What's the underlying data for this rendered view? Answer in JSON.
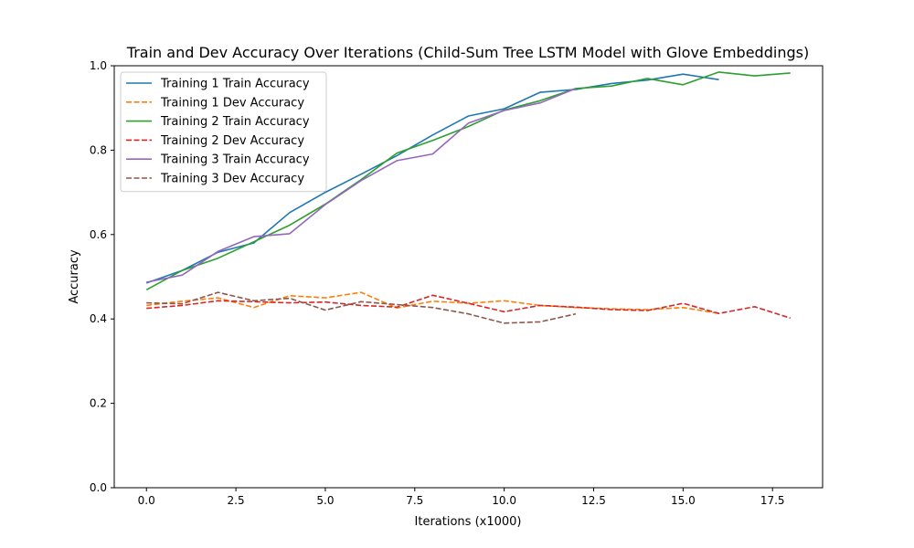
{
  "chart_data": {
    "type": "line",
    "title": "Train and Dev Accuracy Over Iterations (Child-Sum Tree LSTM Model with Glove Embeddings)",
    "xlabel": "Iterations (x1000)",
    "ylabel": "Accuracy",
    "xlim": [
      -0.9,
      18.9
    ],
    "ylim": [
      0.0,
      1.0
    ],
    "xticks": [
      "0.0",
      "2.5",
      "5.0",
      "7.5",
      "10.0",
      "12.5",
      "15.0",
      "17.5"
    ],
    "yticks": [
      "0.0",
      "0.2",
      "0.4",
      "0.6",
      "0.8",
      "1.0"
    ],
    "grid": false,
    "legend_position": "top-left",
    "series": [
      {
        "name": "Training 1 Train Accuracy",
        "color": "#1f77b4",
        "style": "solid",
        "x": [
          0,
          1,
          2,
          3,
          4,
          5,
          6,
          7,
          8,
          9,
          10,
          11,
          12,
          13,
          14,
          15,
          16
        ],
        "y": [
          0.485,
          0.515,
          0.558,
          0.58,
          0.652,
          0.7,
          0.743,
          0.787,
          0.836,
          0.881,
          0.898,
          0.937,
          0.944,
          0.958,
          0.966,
          0.98,
          0.967
        ]
      },
      {
        "name": "Training 1 Dev Accuracy",
        "color": "#ff7f0e",
        "style": "dashed",
        "x": [
          0,
          1,
          2,
          3,
          4,
          5,
          6,
          7,
          8,
          9,
          10,
          11,
          12,
          13,
          14,
          15,
          16
        ],
        "y": [
          0.432,
          0.442,
          0.45,
          0.427,
          0.455,
          0.45,
          0.463,
          0.426,
          0.442,
          0.437,
          0.443,
          0.432,
          0.427,
          0.424,
          0.422,
          0.427,
          0.413
        ]
      },
      {
        "name": "Training 2 Train Accuracy",
        "color": "#2ca02c",
        "style": "solid",
        "x": [
          0,
          1,
          2,
          3,
          4,
          5,
          6,
          7,
          8,
          9,
          10,
          11,
          12,
          13,
          14,
          15,
          16,
          17,
          18
        ],
        "y": [
          0.469,
          0.515,
          0.544,
          0.583,
          0.622,
          0.672,
          0.73,
          0.793,
          0.823,
          0.856,
          0.895,
          0.917,
          0.946,
          0.952,
          0.97,
          0.955,
          0.985,
          0.976,
          0.983
        ]
      },
      {
        "name": "Training 2 Dev Accuracy",
        "color": "#d62728",
        "style": "dashed",
        "x": [
          0,
          1,
          2,
          3,
          4,
          5,
          6,
          7,
          8,
          9,
          10,
          11,
          12,
          13,
          14,
          15,
          16,
          17,
          18
        ],
        "y": [
          0.425,
          0.432,
          0.443,
          0.441,
          0.438,
          0.44,
          0.432,
          0.428,
          0.456,
          0.437,
          0.417,
          0.432,
          0.428,
          0.422,
          0.42,
          0.437,
          0.413,
          0.429,
          0.402
        ]
      },
      {
        "name": "Training 3 Train Accuracy",
        "color": "#9467bd",
        "style": "solid",
        "x": [
          0,
          1,
          2,
          3,
          4,
          5,
          6,
          7,
          8,
          9,
          10,
          11,
          12
        ],
        "y": [
          0.487,
          0.504,
          0.56,
          0.595,
          0.602,
          0.671,
          0.728,
          0.775,
          0.791,
          0.864,
          0.894,
          0.912,
          0.946
        ]
      },
      {
        "name": "Training 3 Dev Accuracy",
        "color": "#8c564b",
        "style": "dashed",
        "x": [
          0,
          1,
          2,
          3,
          4,
          5,
          6,
          7,
          8,
          9,
          10,
          11,
          12
        ],
        "y": [
          0.438,
          0.436,
          0.463,
          0.443,
          0.449,
          0.421,
          0.441,
          0.434,
          0.427,
          0.412,
          0.39,
          0.393,
          0.412
        ]
      }
    ]
  }
}
